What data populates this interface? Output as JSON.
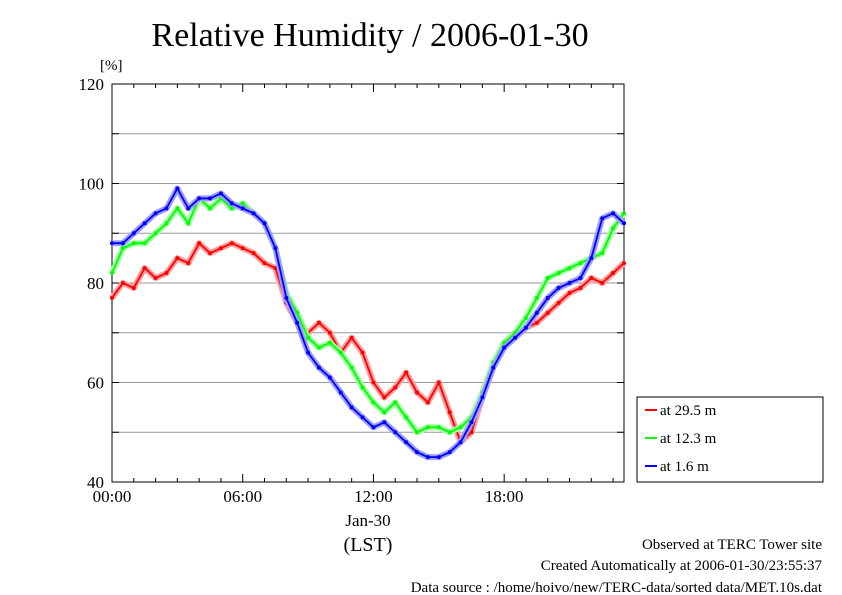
{
  "chart_data": {
    "type": "line",
    "title": "Relative Humidity / 2006-01-30",
    "ylabel": "[%]",
    "xlabel": "(LST)",
    "date_label": "Jan-30",
    "ylim": [
      40,
      120
    ],
    "yticks": [
      "40",
      "60",
      "80",
      "100",
      "120"
    ],
    "xlim": [
      0,
      23.5
    ],
    "xticks": [
      {
        "hour": 0,
        "label": "00:00"
      },
      {
        "hour": 6,
        "label": "06:00"
      },
      {
        "hour": 12,
        "label": "12:00"
      },
      {
        "hour": 18,
        "label": "18:00"
      }
    ],
    "grid": "horizontal",
    "legend_position": "right",
    "x": [
      0,
      0.5,
      1,
      1.5,
      2,
      2.5,
      3,
      3.5,
      4,
      4.5,
      5,
      5.5,
      6,
      6.5,
      7,
      7.5,
      8,
      8.5,
      9,
      9.5,
      10,
      10.5,
      11,
      11.5,
      12,
      12.5,
      13,
      13.5,
      14,
      14.5,
      15,
      15.5,
      16,
      16.5,
      17,
      17.5,
      18,
      18.5,
      19,
      19.5,
      20,
      20.5,
      21,
      21.5,
      22,
      22.5,
      23,
      23.5
    ],
    "series": [
      {
        "name": "at 29.5 m",
        "color": "#ff0000",
        "values": [
          77,
          80,
          79,
          83,
          81,
          82,
          85,
          84,
          88,
          86,
          87,
          88,
          87,
          86,
          84,
          83,
          76,
          72,
          70,
          72,
          70,
          66,
          69,
          66,
          60,
          57,
          59,
          62,
          58,
          56,
          60,
          54,
          48,
          50,
          57,
          63,
          68,
          70,
          71,
          72,
          74,
          76,
          78,
          79,
          81,
          80,
          82,
          84
        ]
      },
      {
        "name": "at 12.3 m",
        "color": "#00ff00",
        "values": [
          82,
          87,
          88,
          88,
          90,
          92,
          95,
          92,
          97,
          95,
          97,
          95,
          96,
          94,
          92,
          87,
          78,
          74,
          69,
          67,
          68,
          66,
          63,
          59,
          56,
          54,
          56,
          53,
          50,
          51,
          51,
          50,
          51,
          53,
          58,
          64,
          68,
          70,
          73,
          77,
          81,
          82,
          83,
          84,
          85,
          86,
          91,
          94
        ]
      },
      {
        "name": "at 1.6 m",
        "color": "#0000ff",
        "values": [
          88,
          88,
          90,
          92,
          94,
          95,
          99,
          95,
          97,
          97,
          98,
          96,
          95,
          94,
          92,
          87,
          77,
          72,
          66,
          63,
          61,
          58,
          55,
          53,
          51,
          52,
          50,
          48,
          46,
          45,
          45,
          46,
          48,
          52,
          57,
          63,
          67,
          69,
          71,
          74,
          77,
          79,
          80,
          81,
          85,
          93,
          94,
          92
        ]
      }
    ]
  },
  "footer": {
    "observed": "Observed at TERC Tower site",
    "created": "Created Automatically at 2006-01-30/23:55:37",
    "source": "Data source : /home/hoivo/new/TERC-data/sorted  data/MET.10s.dat"
  }
}
